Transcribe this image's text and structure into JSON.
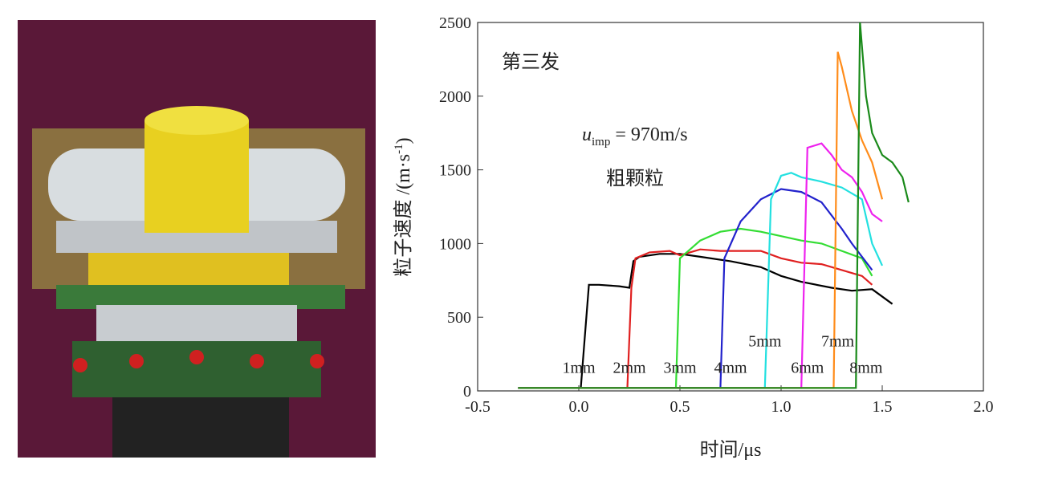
{
  "chart_data": {
    "type": "line",
    "annotation_title": "第三发",
    "annotation_velocity": {
      "u": "u",
      "sub": "imp",
      "rest": " = 970m/s"
    },
    "annotation_grain": "粗颗粒",
    "x_label": "时间/μs",
    "y_label": {
      "main": "粒子速度 /(m·s",
      "sup": "-1",
      "end": ")"
    },
    "xlim": [
      -0.5,
      2.0
    ],
    "xticks": [
      -0.5,
      {
        "value": 0,
        "label": "0.0"
      },
      0.5,
      {
        "value": 1,
        "label": "1.0"
      },
      1.5,
      {
        "value": 2,
        "label": "2.0"
      }
    ],
    "ylim": [
      0,
      2500
    ],
    "yticks": [
      0,
      500,
      1000,
      1500,
      2000,
      2500
    ],
    "series": [
      {
        "name": "1mm",
        "color": "#000000",
        "x": [
          -0.3,
          0.01,
          0.05,
          0.1,
          0.2,
          0.25,
          0.27,
          0.3,
          0.4,
          0.5,
          0.6,
          0.75,
          0.9,
          1.0,
          1.1,
          1.25,
          1.35,
          1.45,
          1.55
        ],
        "values": [
          20,
          20,
          720,
          720,
          710,
          700,
          880,
          910,
          930,
          930,
          910,
          880,
          840,
          780,
          740,
          700,
          680,
          690,
          590
        ]
      },
      {
        "name": "2mm",
        "color": "#e02020",
        "x": [
          -0.3,
          0.24,
          0.26,
          0.28,
          0.35,
          0.45,
          0.5,
          0.6,
          0.7,
          0.9,
          1.0,
          1.1,
          1.2,
          1.3,
          1.4,
          1.45
        ],
        "values": [
          20,
          20,
          700,
          900,
          940,
          950,
          920,
          960,
          950,
          950,
          900,
          870,
          860,
          820,
          780,
          720
        ]
      },
      {
        "name": "3mm",
        "color": "#33dd33",
        "x": [
          -0.3,
          0.48,
          0.5,
          0.6,
          0.7,
          0.8,
          0.9,
          1.0,
          1.1,
          1.2,
          1.3,
          1.4,
          1.45
        ],
        "values": [
          20,
          20,
          900,
          1020,
          1080,
          1100,
          1080,
          1050,
          1020,
          1000,
          950,
          900,
          780
        ]
      },
      {
        "name": "4mm",
        "color": "#2222cc",
        "x": [
          -0.3,
          0.7,
          0.72,
          0.8,
          0.9,
          1.0,
          1.1,
          1.2,
          1.3,
          1.35,
          1.45
        ],
        "values": [
          20,
          20,
          900,
          1150,
          1300,
          1370,
          1350,
          1280,
          1100,
          1000,
          820
        ]
      },
      {
        "name": "5mm",
        "color": "#22e0e0",
        "x": [
          -0.3,
          0.92,
          0.95,
          1.0,
          1.05,
          1.1,
          1.2,
          1.3,
          1.4,
          1.45,
          1.5
        ],
        "values": [
          20,
          20,
          1300,
          1460,
          1480,
          1450,
          1420,
          1380,
          1300,
          1000,
          850
        ]
      },
      {
        "name": "6mm",
        "color": "#ee22ee",
        "x": [
          -0.3,
          1.1,
          1.13,
          1.2,
          1.25,
          1.3,
          1.35,
          1.4,
          1.45,
          1.5
        ],
        "values": [
          20,
          20,
          1650,
          1680,
          1600,
          1500,
          1450,
          1350,
          1200,
          1150
        ]
      },
      {
        "name": "7mm",
        "color": "#ff8c1a",
        "x": [
          -0.3,
          1.26,
          1.28,
          1.3,
          1.35,
          1.4,
          1.45,
          1.5
        ],
        "values": [
          20,
          20,
          2300,
          2200,
          1900,
          1700,
          1550,
          1300
        ]
      },
      {
        "name": "8mm",
        "color": "#1a8a1a",
        "x": [
          -0.3,
          1.37,
          1.39,
          1.42,
          1.45,
          1.5,
          1.55,
          1.6,
          1.63
        ],
        "values": [
          20,
          20,
          2500,
          2000,
          1750,
          1600,
          1550,
          1450,
          1280
        ]
      }
    ]
  }
}
